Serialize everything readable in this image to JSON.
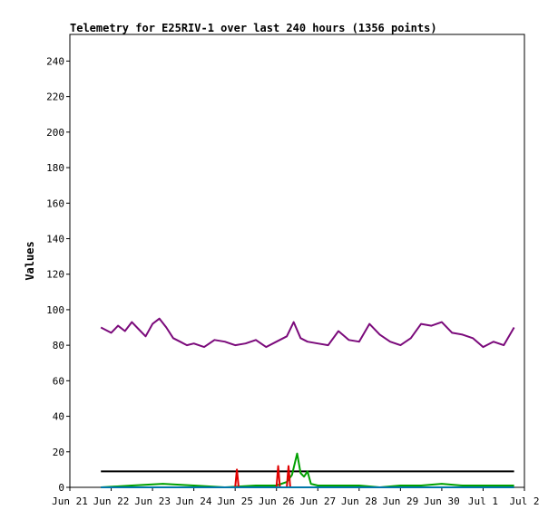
{
  "chart_data": {
    "type": "line",
    "title": "Telemetry for E25RIV-1 over last 240 hours (1356 points)",
    "xlabel": "",
    "ylabel": "Values",
    "xlim": [
      "2023-06-21",
      "2023-07-02"
    ],
    "ylim": [
      0,
      255
    ],
    "x_ticks": [
      "Jun 21",
      "Jun 22",
      "Jun 23",
      "Jun 24",
      "Jun 25",
      "Jun 26",
      "Jun 27",
      "Jun 28",
      "Jun 29",
      "Jun 30",
      "Jul 1",
      "Jul 2"
    ],
    "y_ticks": [
      0,
      20,
      40,
      60,
      80,
      100,
      120,
      140,
      160,
      180,
      200,
      220,
      240
    ],
    "grid": false,
    "legend": "none",
    "series": [
      {
        "color": "#7b0a7b",
        "x": [
          "Jun 21 18:00",
          "Jun 22 00:00",
          "Jun 22 04:00",
          "Jun 22 08:00",
          "Jun 22 12:00",
          "Jun 22 16:00",
          "Jun 22 20:00",
          "Jun 23 00:00",
          "Jun 23 04:00",
          "Jun 23 08:00",
          "Jun 23 12:00",
          "Jun 23 16:00",
          "Jun 23 20:00",
          "Jun 24 00:00",
          "Jun 24 06:00",
          "Jun 24 12:00",
          "Jun 24 18:00",
          "Jun 25 00:00",
          "Jun 25 06:00",
          "Jun 25 12:00",
          "Jun 25 18:00",
          "Jun 26 00:00",
          "Jun 26 06:00",
          "Jun 26 10:00",
          "Jun 26 14:00",
          "Jun 26 18:00",
          "Jun 27 00:00",
          "Jun 27 06:00",
          "Jun 27 12:00",
          "Jun 27 18:00",
          "Jun 28 00:00",
          "Jun 28 06:00",
          "Jun 28 12:00",
          "Jun 28 18:00",
          "Jun 29 00:00",
          "Jun 29 06:00",
          "Jun 29 12:00",
          "Jun 29 18:00",
          "Jun 30 00:00",
          "Jun 30 06:00",
          "Jun 30 12:00",
          "Jun 30 18:00",
          "Jul 1 00:00",
          "Jul 1 06:00",
          "Jul 1 12:00",
          "Jul 1 18:00"
        ],
        "y": [
          90,
          87,
          91,
          88,
          93,
          89,
          85,
          92,
          95,
          90,
          84,
          82,
          80,
          81,
          79,
          83,
          82,
          80,
          81,
          83,
          79,
          82,
          85,
          93,
          84,
          82,
          81,
          80,
          88,
          83,
          82,
          92,
          86,
          82,
          80,
          84,
          92,
          91,
          93,
          87,
          86,
          84,
          79,
          82,
          80,
          90
        ]
      },
      {
        "color": "#000000",
        "x": [
          "Jun 21 18:00",
          "Jul 1 18:00"
        ],
        "y": [
          9,
          9
        ]
      },
      {
        "color": "#00a000",
        "x": [
          "Jun 21 18:00",
          "Jun 22 12:00",
          "Jun 23 06:00",
          "Jun 24 00:00",
          "Jun 24 18:00",
          "Jun 25 12:00",
          "Jun 26 00:00",
          "Jun 26 06:00",
          "Jun 26 09:00",
          "Jun 26 12:00",
          "Jun 26 14:00",
          "Jun 26 16:00",
          "Jun 26 18:00",
          "Jun 26 20:00",
          "Jun 27 00:00",
          "Jun 27 12:00",
          "Jun 28 00:00",
          "Jun 28 12:00",
          "Jun 29 00:00",
          "Jun 29 12:00",
          "Jun 30 00:00",
          "Jun 30 12:00",
          "Jul 1 00:00",
          "Jul 1 18:00"
        ],
        "y": [
          0,
          1,
          2,
          1,
          0,
          1,
          1,
          3,
          7,
          19,
          8,
          6,
          9,
          2,
          1,
          1,
          1,
          0,
          1,
          1,
          2,
          1,
          1,
          1
        ]
      },
      {
        "color": "#e00000",
        "x": [
          "Jun 25 00:00",
          "Jun 25 01:00",
          "Jun 25 02:00",
          "Jun 26 00:00",
          "Jun 26 01:00",
          "Jun 26 02:00",
          "Jun 26 06:00",
          "Jun 26 07:00",
          "Jun 26 08:00"
        ],
        "y": [
          0,
          10,
          0,
          0,
          12,
          0,
          0,
          12,
          0
        ]
      },
      {
        "color": "#0077aa",
        "x": [
          "Jun 21 18:00",
          "Jul 1 18:00"
        ],
        "y": [
          0,
          0
        ]
      }
    ]
  }
}
